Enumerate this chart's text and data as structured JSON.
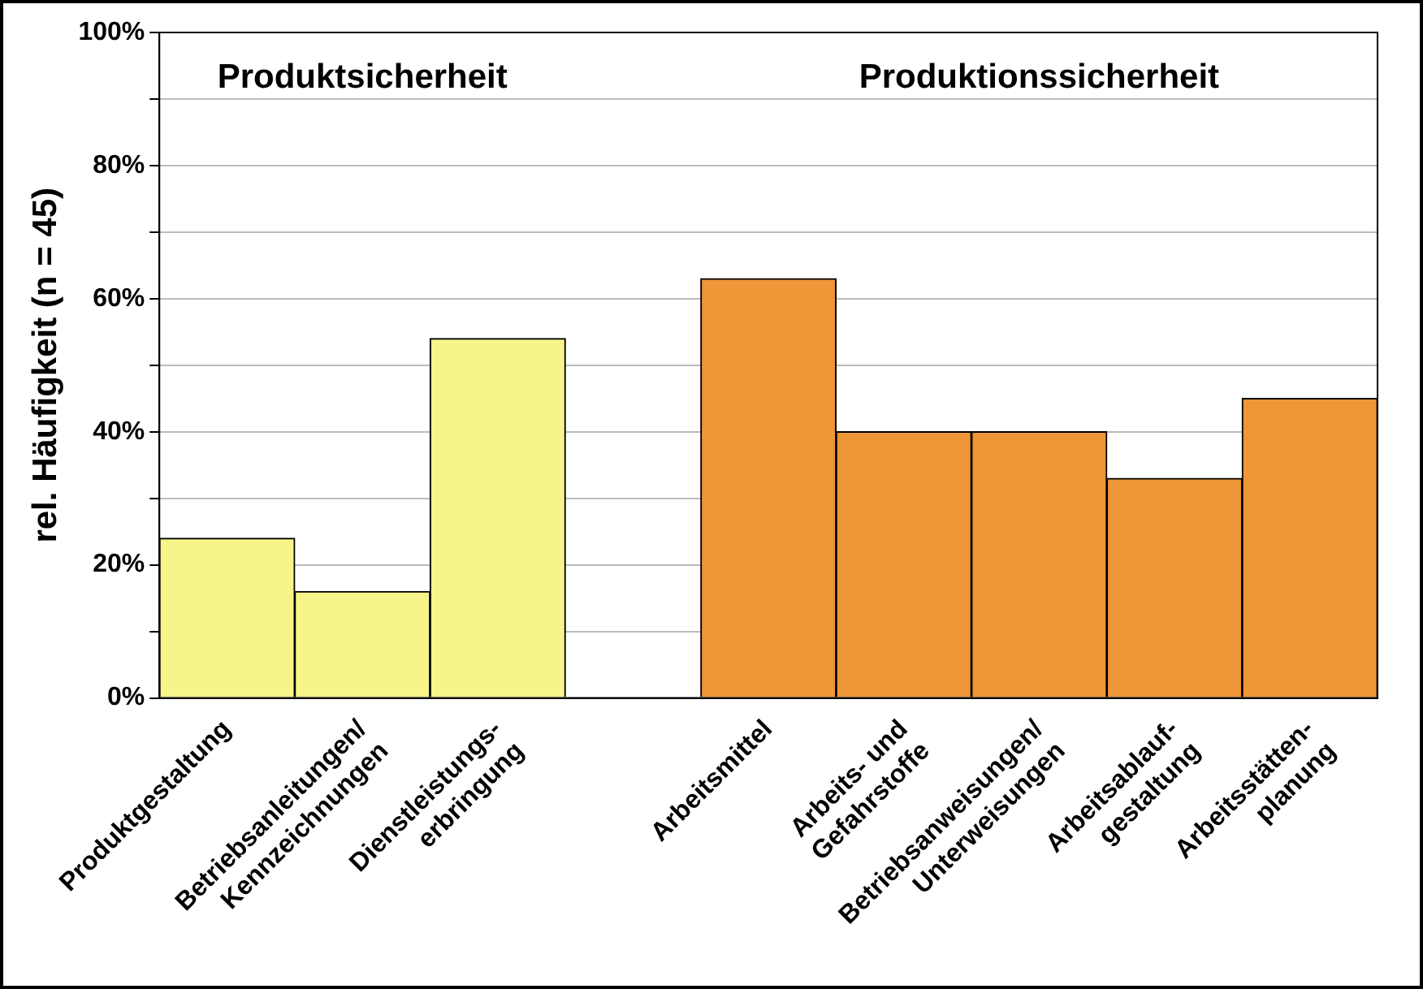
{
  "chart_data": {
    "type": "bar",
    "ylabel": "rel. Häufigkeit (n = 45)",
    "categories": [
      "Produktgestaltung",
      "Betriebsanleitungen/\nKennzeichnungen",
      "Dienstleistungs-\nerbringung",
      null,
      "Arbeitsmittel",
      "Arbeits- und\nGefahrstoffe",
      "Betriebsanweisungen/\nUnterweisungen",
      "Arbeitsablauf-\ngestaltung",
      "Arbeitsstätten-\nplanung"
    ],
    "values": [
      24,
      16,
      54,
      null,
      63,
      40,
      40,
      33,
      45
    ],
    "colors": [
      "#f7f48a",
      "#f7f48a",
      "#f7f48a",
      "#ffffff",
      "#ee9638",
      "#ee9638",
      "#ee9638",
      "#ee9638",
      "#ee9638"
    ],
    "ylim": [
      0,
      100
    ],
    "yticks": [
      {
        "value": 0,
        "label": "0%"
      },
      {
        "value": 10,
        "label": null
      },
      {
        "value": 20,
        "label": "20%"
      },
      {
        "value": 30,
        "label": null
      },
      {
        "value": 40,
        "label": "40%"
      },
      {
        "value": 50,
        "label": null
      },
      {
        "value": 60,
        "label": "60%"
      },
      {
        "value": 70,
        "label": null
      },
      {
        "value": 80,
        "label": "80%"
      },
      {
        "value": 90,
        "label": null
      },
      {
        "value": 100,
        "label": "100%"
      }
    ],
    "grid": "y",
    "annotations": [
      "Produktsicherheit",
      "Produktionssicherheit"
    ]
  }
}
